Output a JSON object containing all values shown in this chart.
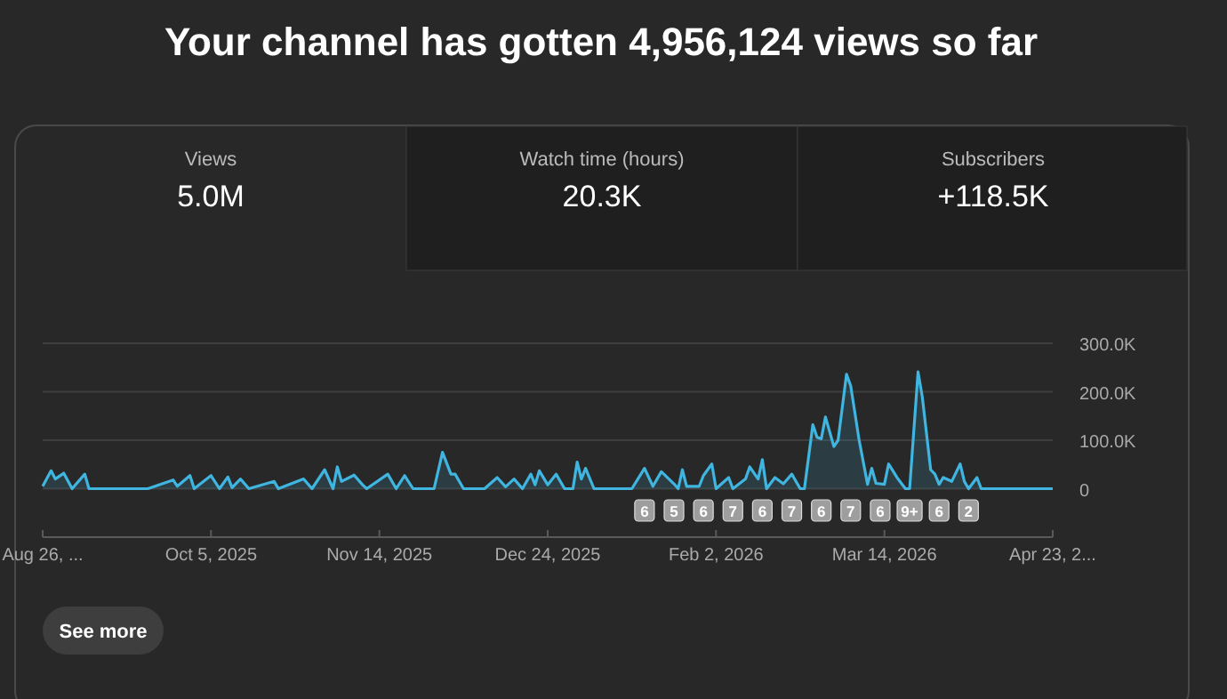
{
  "chart_data": {
    "type": "area",
    "title": "Your channel has gotten 4,956,124 views so far",
    "x": [
      "2025-08-26",
      "2025-08-28",
      "2025-08-29",
      "2025-08-31",
      "2025-09-02",
      "2025-09-05",
      "2025-09-06",
      "2025-09-20",
      "2025-09-26",
      "2025-09-27",
      "2025-09-30",
      "2025-10-01",
      "2025-10-05",
      "2025-10-07",
      "2025-10-09",
      "2025-10-10",
      "2025-10-12",
      "2025-10-14",
      "2025-10-20",
      "2025-10-21",
      "2025-10-27",
      "2025-10-29",
      "2025-11-01",
      "2025-11-03",
      "2025-11-04",
      "2025-11-05",
      "2025-11-08",
      "2025-11-10",
      "2025-11-11",
      "2025-11-16",
      "2025-11-18",
      "2025-11-20",
      "2025-11-22",
      "2025-11-27",
      "2025-11-29",
      "2025-12-01",
      "2025-12-02",
      "2025-12-04",
      "2025-12-09",
      "2025-12-12",
      "2025-12-14",
      "2025-12-16",
      "2025-12-18",
      "2025-12-20",
      "2025-12-21",
      "2025-12-22",
      "2025-12-24",
      "2025-12-26",
      "2025-12-28",
      "2025-12-30",
      "2025-12-31",
      "2026-01-01",
      "2026-01-02",
      "2026-01-04",
      "2026-01-13",
      "2026-01-16",
      "2026-01-18",
      "2026-01-20",
      "2026-01-23",
      "2026-01-24",
      "2026-01-25",
      "2026-01-26",
      "2026-01-29",
      "2026-01-30",
      "2026-02-01",
      "2026-02-02",
      "2026-02-05",
      "2026-02-06",
      "2026-02-09",
      "2026-02-10",
      "2026-02-12",
      "2026-02-13",
      "2026-02-14",
      "2026-02-16",
      "2026-02-18",
      "2026-02-20",
      "2026-02-22",
      "2026-02-23",
      "2026-02-25",
      "2026-02-26",
      "2026-02-27",
      "2026-02-28",
      "2026-03-02",
      "2026-03-03",
      "2026-03-05",
      "2026-03-06",
      "2026-03-08",
      "2026-03-10",
      "2026-03-11",
      "2026-03-12",
      "2026-03-14",
      "2026-03-15",
      "2026-03-17",
      "2026-03-19",
      "2026-03-20",
      "2026-03-22",
      "2026-03-23",
      "2026-03-25",
      "2026-03-26",
      "2026-03-27",
      "2026-03-28",
      "2026-03-30",
      "2026-04-01",
      "2026-04-02",
      "2026-04-03",
      "2026-04-05",
      "2026-04-06",
      "2026-04-23"
    ],
    "series": [
      {
        "color": "#3fb5e0",
        "values": [
          5000,
          37000,
          20000,
          32000,
          0,
          30000,
          0,
          0,
          18000,
          5000,
          27000,
          0,
          27000,
          0,
          24000,
          2000,
          20000,
          0,
          15000,
          0,
          20000,
          0,
          39000,
          0,
          45000,
          15000,
          28000,
          8000,
          0,
          30000,
          0,
          27000,
          0,
          0,
          75000,
          30000,
          30000,
          0,
          0,
          23000,
          4000,
          20000,
          0,
          30000,
          8000,
          37000,
          8000,
          30000,
          0,
          0,
          55000,
          20000,
          42000,
          0,
          0,
          42000,
          5000,
          35000,
          10000,
          0,
          39000,
          5000,
          5000,
          27000,
          51000,
          0,
          23000,
          0,
          20000,
          45000,
          20000,
          60000,
          0,
          23000,
          10000,
          30000,
          0,
          0,
          132000,
          106000,
          103000,
          148000,
          87000,
          100000,
          236000,
          212000,
          100000,
          9000,
          42000,
          11000,
          9000,
          51000,
          23000,
          0,
          0,
          241000,
          190000,
          39000,
          30000,
          9000,
          23000,
          15000,
          51000,
          15000,
          0,
          23000,
          0,
          0
        ]
      }
    ],
    "xlim": [
      "2025-08-26",
      "2026-04-23"
    ],
    "xticks": [
      {
        "value": "2025-08-26",
        "label": "Aug 26, ..."
      },
      {
        "value": "2025-10-05",
        "label": "Oct 5, 2025"
      },
      {
        "value": "2025-11-14",
        "label": "Nov 14, 2025"
      },
      {
        "value": "2025-12-24",
        "label": "Dec 24, 2025"
      },
      {
        "value": "2026-02-02",
        "label": "Feb 2, 2026"
      },
      {
        "value": "2026-03-14",
        "label": "Mar 14, 2026"
      },
      {
        "value": "2026-04-23",
        "label": "Apr 23, 2..."
      }
    ],
    "ylim": [
      -100000,
      300000
    ],
    "yticks": [
      0,
      {
        "value": 100000,
        "label": "100.0K"
      },
      {
        "value": 200000,
        "label": "200.0K"
      },
      {
        "value": 300000,
        "label": "300.0K"
      }
    ],
    "grid": "y",
    "marker": "none",
    "annotations": [
      "Views",
      "5.0M",
      "Watch time (hours)",
      "20.3K",
      "Subscribers",
      "+118.5K",
      "See more",
      {
        "text": "6",
        "x": "2026-01-16"
      },
      {
        "text": "5",
        "x": "2026-01-23"
      },
      {
        "text": "6",
        "x": "2026-01-30"
      },
      {
        "text": "7",
        "x": "2026-02-06"
      },
      {
        "text": "6",
        "x": "2026-02-13"
      },
      {
        "text": "7",
        "x": "2026-02-20"
      },
      {
        "text": "6",
        "x": "2026-02-27"
      },
      {
        "text": "7",
        "x": "2026-03-06"
      },
      {
        "text": "6",
        "x": "2026-03-13"
      },
      {
        "text": "9+",
        "x": "2026-03-20"
      },
      {
        "text": "6",
        "x": "2026-03-27"
      },
      {
        "text": "2",
        "x": "2026-04-03"
      }
    ]
  }
}
